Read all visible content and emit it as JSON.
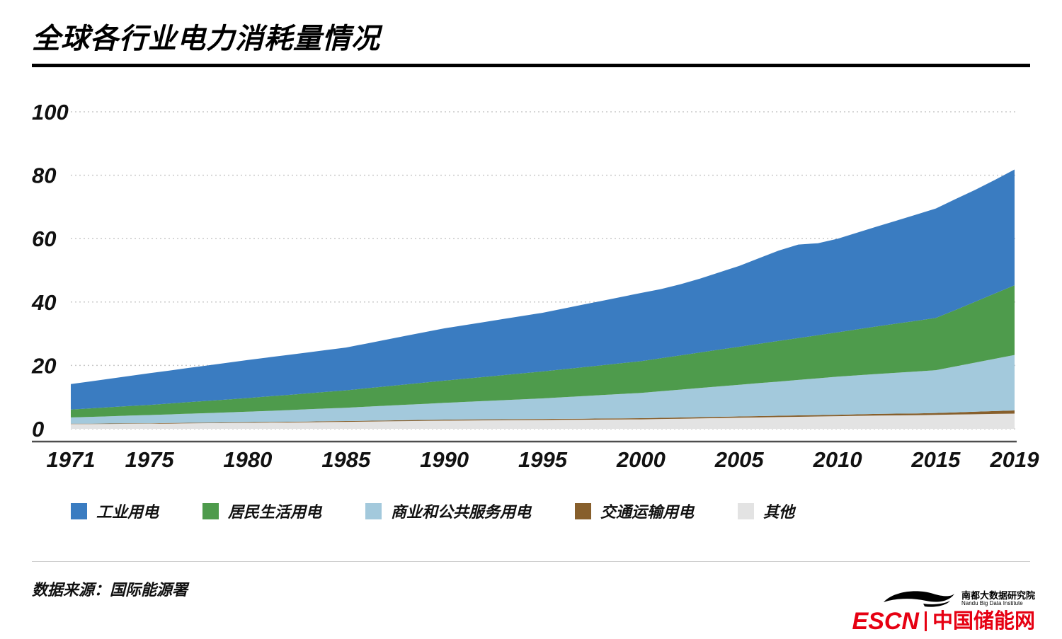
{
  "title": "全球各行业电力消耗量情况",
  "source_note": "数据来源：国际能源署",
  "footer": {
    "nandu_cn": "南都大数据研究院",
    "nandu_en": "Nandu Big Data Institute",
    "escn": "ESCN",
    "escn_site": "中国储能网"
  },
  "colors": {
    "industry": "#3a7cc1",
    "residential": "#4e9b4c",
    "commercial": "#a3c9dc",
    "transport": "#875f2c",
    "other": "#e3e3e3",
    "grid": "#c9c9c9",
    "axis": "#4d4d4d",
    "brand_red": "#e60012",
    "text": "#111111"
  },
  "chart_data": {
    "type": "area",
    "stacked": true,
    "title": "全球各行业电力消耗量情况",
    "xlabel": "",
    "ylabel": "",
    "ylim": [
      0,
      100
    ],
    "grid": "dotted-horizontal",
    "legend_position": "bottom",
    "x": [
      1971,
      1972,
      1973,
      1974,
      1975,
      1976,
      1977,
      1978,
      1979,
      1980,
      1981,
      1982,
      1983,
      1984,
      1985,
      1986,
      1987,
      1988,
      1989,
      1990,
      1991,
      1992,
      1993,
      1994,
      1995,
      1996,
      1997,
      1998,
      1999,
      2000,
      2001,
      2002,
      2003,
      2004,
      2005,
      2006,
      2007,
      2008,
      2009,
      2010,
      2011,
      2012,
      2013,
      2014,
      2015,
      2016,
      2017,
      2018,
      2019
    ],
    "x_ticks": [
      1971,
      1975,
      1980,
      1985,
      1990,
      1995,
      2000,
      2005,
      2010,
      2015,
      2019
    ],
    "y_ticks": [
      0,
      20,
      40,
      60,
      80,
      100
    ],
    "series": [
      {
        "id": "other",
        "name": "其他",
        "color": "#e3e3e3",
        "values": [
          1.5,
          1.52,
          1.55,
          1.58,
          1.6,
          1.66,
          1.72,
          1.78,
          1.84,
          1.9,
          1.96,
          2.02,
          2.08,
          2.14,
          2.2,
          2.28,
          2.36,
          2.44,
          2.52,
          2.6,
          2.64,
          2.68,
          2.72,
          2.76,
          2.8,
          2.84,
          2.88,
          2.92,
          2.96,
          3.0,
          3.1,
          3.2,
          3.3,
          3.4,
          3.5,
          3.6,
          3.7,
          3.8,
          3.9,
          4.0,
          4.1,
          4.2,
          4.25,
          4.3,
          4.4,
          4.5,
          4.6,
          4.7,
          4.8
        ]
      },
      {
        "id": "transport",
        "name": "交通运输用电",
        "color": "#875f2c",
        "values": [
          0.1,
          0.11,
          0.12,
          0.14,
          0.15,
          0.16,
          0.17,
          0.18,
          0.19,
          0.2,
          0.21,
          0.22,
          0.23,
          0.24,
          0.25,
          0.26,
          0.27,
          0.28,
          0.29,
          0.3,
          0.3,
          0.3,
          0.3,
          0.3,
          0.3,
          0.31,
          0.32,
          0.33,
          0.34,
          0.35,
          0.36,
          0.37,
          0.38,
          0.39,
          0.4,
          0.41,
          0.42,
          0.43,
          0.44,
          0.45,
          0.48,
          0.51,
          0.54,
          0.57,
          0.6,
          0.7,
          0.8,
          0.9,
          1.0
        ]
      },
      {
        "id": "commercial",
        "name": "商业和公共服务用电",
        "color": "#a3c9dc",
        "values": [
          2.0,
          2.15,
          2.3,
          2.45,
          2.6,
          2.74,
          2.88,
          3.02,
          3.16,
          3.3,
          3.48,
          3.66,
          3.84,
          4.02,
          4.2,
          4.42,
          4.64,
          4.86,
          5.08,
          5.3,
          5.54,
          5.78,
          6.02,
          6.26,
          6.5,
          6.8,
          7.1,
          7.4,
          7.7,
          8.0,
          8.4,
          8.8,
          9.2,
          9.6,
          10.0,
          10.4,
          10.8,
          11.2,
          11.6,
          12.0,
          12.3,
          12.6,
          12.9,
          13.2,
          13.5,
          14.5,
          15.5,
          16.5,
          17.5
        ]
      },
      {
        "id": "residential",
        "name": "居民生活用电",
        "color": "#4e9b4c",
        "values": [
          2.5,
          2.67,
          2.85,
          3.02,
          3.2,
          3.42,
          3.64,
          3.86,
          4.08,
          4.3,
          4.54,
          4.78,
          5.02,
          5.26,
          5.5,
          5.8,
          6.1,
          6.4,
          6.7,
          7.0,
          7.3,
          7.6,
          7.9,
          8.2,
          8.5,
          8.8,
          9.1,
          9.4,
          9.7,
          10.0,
          10.4,
          10.8,
          11.2,
          11.6,
          12.0,
          12.4,
          12.8,
          13.2,
          13.6,
          14.0,
          14.5,
          15.0,
          15.5,
          16.0,
          16.5,
          17.8,
          19.2,
          20.6,
          22.0
        ]
      },
      {
        "id": "industry",
        "name": "工业用电",
        "color": "#3a7cc1",
        "values": [
          8.0,
          8.5,
          9.0,
          9.5,
          10.0,
          10.4,
          10.8,
          11.2,
          11.6,
          12.0,
          12.3,
          12.6,
          12.9,
          13.2,
          13.5,
          14.1,
          14.7,
          15.3,
          15.9,
          16.5,
          16.9,
          17.3,
          17.7,
          18.1,
          18.5,
          19.1,
          19.7,
          20.3,
          20.9,
          21.5,
          21.8,
          22.4,
          23.3,
          24.4,
          25.5,
          27.0,
          28.5,
          29.5,
          29.0,
          29.5,
          30.5,
          31.5,
          32.5,
          33.5,
          34.5,
          35.0,
          35.3,
          35.8,
          36.5
        ]
      }
    ]
  }
}
